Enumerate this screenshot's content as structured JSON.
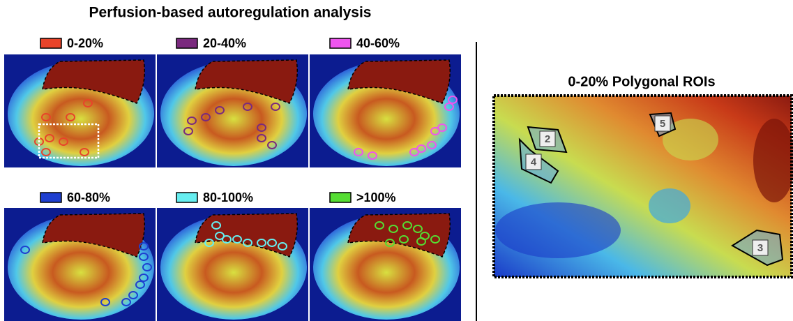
{
  "header": {
    "title": "Perfusion-based autoregulation analysis"
  },
  "legend": [
    {
      "label": "0-20%",
      "color": "#e8442a"
    },
    {
      "label": "20-40%",
      "color": "#7a2a7e"
    },
    {
      "label": "40-60%",
      "color": "#ee55ee"
    },
    {
      "label": "60-80%",
      "color": "#1f3fd0"
    },
    {
      "label": "80-100%",
      "color": "#66eef0"
    },
    {
      "label": ">100%",
      "color": "#55dd33"
    }
  ],
  "roi_view": {
    "title": "0-20%  Polygonal ROIs",
    "roi_labels": [
      "2",
      "4",
      "5",
      "3"
    ]
  }
}
